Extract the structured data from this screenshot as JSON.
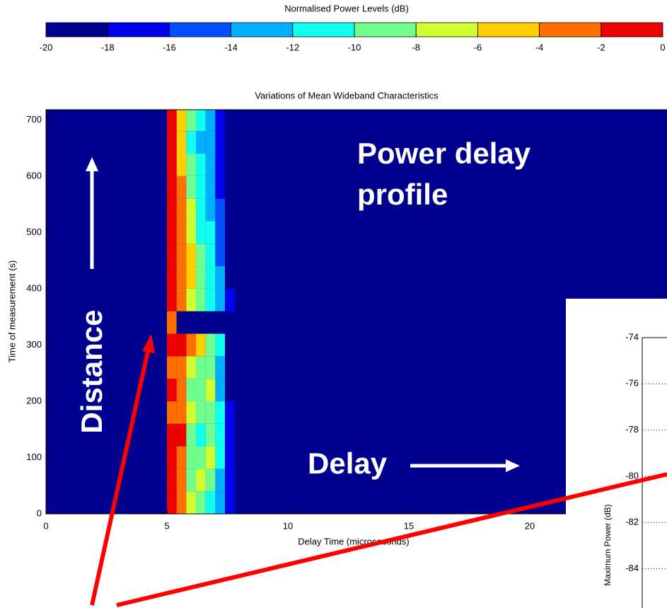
{
  "chart_data": [
    {
      "type": "colorbar",
      "title": "Normalised Power Levels (dB)",
      "xlim": [
        -20,
        0
      ],
      "xticks": [
        -20,
        -18,
        -16,
        -14,
        -12,
        -10,
        -8,
        -6,
        -4,
        -2,
        0
      ],
      "colors": [
        "#00008f",
        "#0000ef",
        "#0050ff",
        "#00afff",
        "#10ffef",
        "#70ff8f",
        "#cfff30",
        "#ffcf00",
        "#ff6f00",
        "#ef0000"
      ]
    },
    {
      "type": "heatmap",
      "title": "Variations of Mean Wideband Characteristics",
      "x_label": "Delay Time (microseconds)",
      "y_label": "Time of measurement (s)",
      "xlim": [
        0,
        26
      ],
      "xticks": [
        0,
        5,
        10,
        15,
        20
      ],
      "ylim": [
        0,
        718
      ],
      "yticks": [
        0,
        100,
        200,
        300,
        400,
        500,
        600,
        700
      ],
      "background": -20,
      "x": [
        5.2,
        5.6,
        6.0,
        6.4,
        6.8,
        7.2,
        7.6
      ],
      "y": [
        0,
        40,
        80,
        120,
        160,
        200,
        240,
        280,
        320,
        360,
        400,
        440,
        480,
        520,
        560,
        600,
        640,
        680
      ],
      "z": [
        [
          -1,
          -3,
          -8,
          -9,
          -11,
          -14,
          -18
        ],
        [
          -2,
          -4,
          -9,
          -8,
          -10,
          -13,
          -18
        ],
        [
          -1,
          -3,
          -10,
          -9,
          -8,
          -12,
          -17
        ],
        [
          -2,
          -2,
          -10,
          -11,
          -9,
          -12,
          -18
        ],
        [
          -3,
          -3,
          -8,
          -10,
          -10,
          -12,
          -18
        ],
        [
          -2,
          -3,
          -9,
          -9,
          -8,
          -13,
          -19
        ],
        [
          -3,
          -4,
          -7,
          -10,
          -9,
          -14,
          -20
        ],
        [
          -1,
          -2,
          -4,
          -5,
          -9,
          -12,
          -20
        ],
        [
          -4,
          -20,
          -20,
          -20,
          -20,
          -20,
          -20
        ],
        [
          -2,
          -3,
          -8,
          -9,
          -11,
          -13,
          -18
        ],
        [
          -1,
          -3,
          -5,
          -10,
          -11,
          -14,
          -19
        ],
        [
          -1,
          -4,
          -6,
          -10,
          -12,
          -15,
          -19
        ],
        [
          -1,
          -3,
          -7,
          -11,
          -12,
          -15,
          -20
        ],
        [
          -1,
          -4,
          -8,
          -12,
          -13,
          -16,
          -20
        ],
        [
          -2,
          -4,
          -9,
          -12,
          -13,
          -17,
          -20
        ],
        [
          -1,
          -5,
          -10,
          -12,
          -14,
          -18,
          -20
        ],
        [
          -2,
          -5,
          -11,
          -13,
          -14,
          -18,
          -20
        ],
        [
          -1,
          -5,
          -10,
          -12,
          -14,
          -17,
          -20
        ]
      ],
      "annotations": [
        "Power delay profile",
        "Distance",
        "Delay"
      ]
    },
    {
      "type": "line",
      "y_label": "Maximum Power (dB)",
      "ylim": [
        -85.7,
        -74
      ],
      "yticks": [
        -74,
        -76,
        -78,
        -80,
        -82,
        -84
      ],
      "grid": true
    }
  ]
}
